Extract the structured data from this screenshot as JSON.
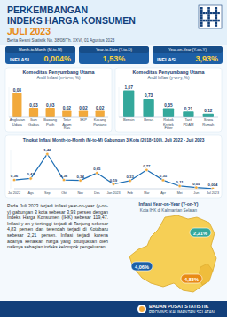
{
  "header": {
    "title": "PERKEMBANGAN",
    "title2": "INDEKS HARGA KONSUMEN",
    "title3": "JULI 2023",
    "subtitle": "Berita Resmi Statistik No. 38/08/Th. XXVI, 01 Agustus 2023"
  },
  "stats": [
    {
      "label": "Month-to-Month (M-to-M)",
      "kind": "INFLASI",
      "value": "0,004%"
    },
    {
      "label": "Year-to-Date (Y-to-D)",
      "value": "1,53%"
    },
    {
      "label": "Year-on-Year (Y-on-Y)",
      "kind": "INFLASI",
      "value": "3,93%"
    }
  ],
  "chart_data": [
    {
      "type": "bar",
      "title": "Komoditas Penyumbang Utama",
      "subtitle": "Andil Inflasi (m-to-m, %)",
      "categories": [
        "Angkutan Udara",
        "Ikan Gabus",
        "Bawang Putih",
        "Telur Ayam Ras",
        "SKP",
        "Kacang Panjang"
      ],
      "values": [
        0.08,
        0.03,
        0.03,
        0.02,
        0.02,
        0.02
      ],
      "value_labels": [
        "0,08",
        "0,03",
        "0,03",
        "0,02",
        "0,02",
        "0,02"
      ],
      "color": "#f2a93b",
      "ylim": [
        0,
        0.1
      ],
      "data_labels": true,
      "tick_labels": "x"
    },
    {
      "type": "bar",
      "title": "Komoditas Penyumbang Utama",
      "subtitle": "Andil Inflasi (y-on-y, %)",
      "categories": [
        "Bensin",
        "Beras",
        "Rokok Kretek Filter",
        "Tarif PDAM",
        "Sewa Rumah"
      ],
      "values": [
        1.07,
        0.73,
        0.35,
        0.21,
        0.12
      ],
      "value_labels": [
        "1,07",
        "0,73",
        "0,35",
        "0,21",
        "0,12"
      ],
      "color": "#34a89b",
      "ylim": [
        0,
        1.2
      ],
      "data_labels": true,
      "tick_labels": "x"
    },
    {
      "type": "line",
      "title": "Tingkat Inflasi Month-to-Month (M-to-M) Gabungan 3 Kota (2018=100), Juli 2022 - Juli 2023",
      "categories": [
        "Jul 2022",
        "Ags",
        "Sep",
        "Okt",
        "Nov",
        "Des",
        "Jan 2023",
        "Feb",
        "Mar",
        "Apr",
        "Mei",
        "Jun",
        "Jul 2023"
      ],
      "values": [
        0.36,
        0.42,
        1.42,
        0.36,
        0.34,
        0.65,
        0.19,
        0.33,
        0.77,
        0.35,
        0.11,
        0.05,
        0.004
      ],
      "value_labels": [
        "0,36",
        "0,42",
        "1,42",
        "0,36",
        "0,34",
        "0,65",
        "0,19",
        "0,33",
        "0,77",
        "0,35",
        "0,11",
        "0,05",
        "0,004"
      ],
      "color": "#1f6fb5",
      "marker": "circle",
      "ylim": [
        0,
        1.6
      ],
      "data_labels": true,
      "tick_labels": "x"
    }
  ],
  "map": {
    "title": "Inflasi Year-on-Year (Y-on-Y)",
    "subtitle": "Kota IHK di Kalimantan Selatan",
    "labels": [
      "2,21%",
      "4,06%",
      "4,83%"
    ]
  },
  "text": "Pada Juli 2023 terjadi inflasi year-on-year (y-on-y) gabungan 3 kota sebesar 3,93 persen dengan Indeks Harga Konsumen (IHK) sebesar 119,47. Inflasi y-on-y tertinggi terjadi di Tanjung sebesar 4,83 persen dan terendah terjadi di Kotabaru sebesar 2,21 persen. Inflasi terjadi karena adanya kenaikan harga yang ditunjukkan oleh naiknya sebagian indeks kelompok pengeluaran.",
  "footer": [
    "BADAN PUSAT STATISTIK",
    "PROVINSI KALIMANTAN SELATAN"
  ]
}
